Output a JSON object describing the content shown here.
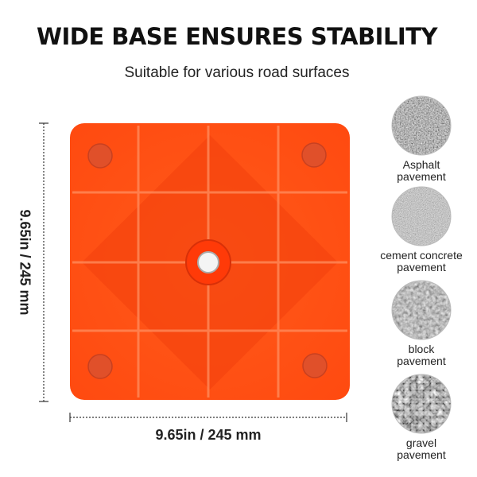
{
  "header": {
    "title": "WIDE BASE ENSURES STABILITY",
    "subtitle": "Suitable for various road surfaces"
  },
  "dimensions": {
    "height": "9.65in / 245 mm",
    "width": "9.65in / 245 mm"
  },
  "surfaces": [
    {
      "lines": [
        "Asphalt",
        "pavement"
      ]
    },
    {
      "lines": [
        "cement concrete",
        "pavement"
      ]
    },
    {
      "lines": [
        "block",
        "pavement"
      ]
    },
    {
      "lines": [
        "gravel",
        "pavement"
      ]
    }
  ]
}
